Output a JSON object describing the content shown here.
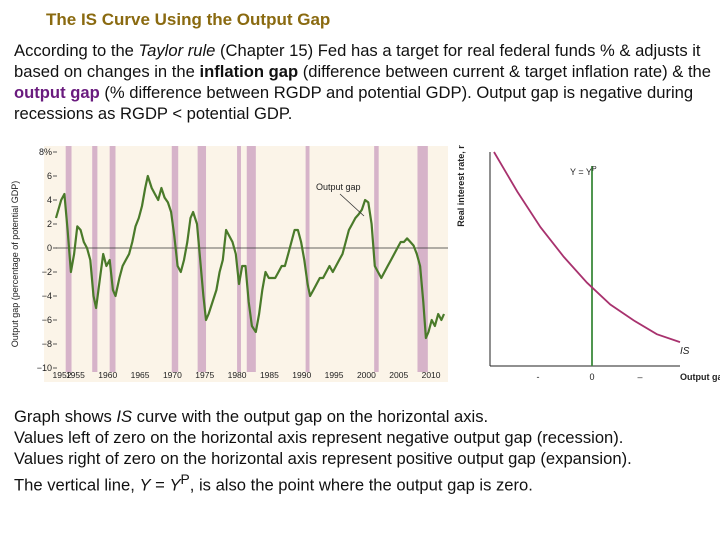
{
  "slide": {
    "title": "The IS Curve Using the Output Gap",
    "intro": {
      "p1": "According to the ",
      "taylor": "Taylor rule",
      "p2": " (Chapter 15) Fed has a target for real federal funds % & adjusts it based on changes in the ",
      "inflation_gap": "inflation gap",
      "p3": " (difference between current & target inflation rate) & the ",
      "output_gap": "output gap",
      "p4": " (% difference between RGDP and potential GDP). Output gap is negative during recessions as RGDP < potential GDP."
    },
    "caption": {
      "line1_a": "Graph shows ",
      "line1_is": "IS",
      "line1_b": " curve with the output gap on the horizontal axis.",
      "line2": "Values left of zero on the horizontal axis represent negative output gap (recession).",
      "line3": "Values right of zero on the horizontal axis represent positive output gap (expansion).",
      "line4_a": "The vertical line, ",
      "line4_y": "Y",
      "line4_eq": " = ",
      "line4_y2": "Y",
      "line4_p": "P",
      "line4_b": ", is also the point where the output gap is zero."
    }
  },
  "chart_data": [
    {
      "type": "line",
      "title": "",
      "ylabel": "Output gap (percentage of potential GDP)",
      "xlabel": "",
      "xlim": [
        1952,
        2012
      ],
      "ylim": [
        -10,
        8
      ],
      "y_ticks": [
        "8%",
        "6",
        "4",
        "2",
        "0",
        "−2",
        "−4",
        "−6",
        "−8",
        "−10"
      ],
      "x_ticks": [
        "1952",
        "1955",
        "1960",
        "1965",
        "1970",
        "1975",
        "1980",
        "1985",
        "1990",
        "1995",
        "2000",
        "2005",
        "2010"
      ],
      "annotation": "Output gap",
      "recession_shading": [
        [
          1953.5,
          1954.4
        ],
        [
          1957.6,
          1958.4
        ],
        [
          1960.3,
          1961.2
        ],
        [
          1969.9,
          1970.9
        ],
        [
          1973.9,
          1975.2
        ],
        [
          1980.0,
          1980.6
        ],
        [
          1981.5,
          1982.9
        ],
        [
          1990.6,
          1991.2
        ],
        [
          2001.2,
          2001.9
        ],
        [
          2007.9,
          2009.5
        ]
      ],
      "colors": {
        "line": "#4a7a2a",
        "recession": "#d6b3c9",
        "panel": "#fbf4e8"
      },
      "series": [
        {
          "x": [
            1952,
            1952.8,
            1953.3,
            1953.8,
            1954.3,
            1954.8,
            1955.3,
            1955.8,
            1956.3,
            1956.8,
            1957.3,
            1957.8,
            1958.2,
            1958.8,
            1959.3,
            1959.8,
            1960.3,
            1960.8,
            1961.2,
            1961.8,
            1962.3,
            1962.8,
            1963.3,
            1963.8,
            1964.3,
            1964.8,
            1965.3,
            1965.8,
            1966.2,
            1966.8,
            1967.3,
            1967.8,
            1968.3,
            1968.8,
            1969.3,
            1969.8,
            1970.3,
            1970.8,
            1971.3,
            1971.8,
            1972.3,
            1972.8,
            1973.2,
            1973.8,
            1974.3,
            1974.8,
            1975.2,
            1975.6,
            1976.2,
            1976.8,
            1977.3,
            1977.8,
            1978.3,
            1978.8,
            1979.3,
            1979.8,
            1980.3,
            1980.8,
            1981.3,
            1981.8,
            1982.3,
            1982.9,
            1983.4,
            1983.9,
            1984.4,
            1984.9,
            1985.4,
            1985.9,
            1986.4,
            1986.9,
            1987.4,
            1987.9,
            1988.4,
            1988.9,
            1989.4,
            1989.9,
            1990.4,
            1990.9,
            1991.3,
            1991.8,
            1992.3,
            1992.8,
            1993.3,
            1993.8,
            1994.3,
            1994.8,
            1995.3,
            1995.8,
            1996.3,
            1996.8,
            1997.3,
            1997.8,
            1998.3,
            1998.8,
            1999.3,
            1999.8,
            2000.3,
            2000.8,
            2001.3,
            2001.8,
            2002.3,
            2002.8,
            2003.3,
            2003.8,
            2004.3,
            2004.8,
            2005.3,
            2005.8,
            2006.3,
            2006.8,
            2007.3,
            2007.8,
            2008.3,
            2008.8,
            2009.2,
            2009.6,
            2010.1,
            2010.6,
            2011.1,
            2011.6,
            2012
          ],
          "y": [
            2.5,
            4.0,
            4.5,
            1.5,
            -2.0,
            -0.5,
            1.8,
            1.5,
            0.5,
            0.0,
            -1.0,
            -4.0,
            -5.0,
            -2.5,
            -0.5,
            -1.5,
            -1.0,
            -3.5,
            -4.0,
            -2.5,
            -1.5,
            -1.0,
            -0.5,
            0.5,
            1.8,
            2.5,
            3.5,
            5.0,
            6.0,
            5.0,
            4.5,
            4.0,
            5.0,
            4.2,
            3.8,
            3.0,
            1.0,
            -1.5,
            -2.0,
            -1.0,
            0.5,
            2.5,
            3.0,
            2.0,
            -1.0,
            -4.0,
            -6.0,
            -5.5,
            -4.5,
            -3.5,
            -2.0,
            -1.0,
            1.5,
            1.0,
            0.5,
            -0.5,
            -3.0,
            -1.5,
            -1.5,
            -4.5,
            -6.5,
            -7.0,
            -5.5,
            -3.5,
            -2.0,
            -2.5,
            -2.5,
            -2.5,
            -2.0,
            -1.5,
            -1.5,
            -0.5,
            0.5,
            1.5,
            1.5,
            0.5,
            -1.0,
            -3.0,
            -4.0,
            -3.5,
            -3.0,
            -2.5,
            -2.5,
            -2.0,
            -1.5,
            -2.0,
            -1.5,
            -1.0,
            -0.5,
            0.5,
            1.5,
            2.0,
            2.5,
            2.8,
            3.2,
            4.0,
            3.8,
            2.0,
            -1.5,
            -2.0,
            -2.5,
            -2.0,
            -1.5,
            -1.0,
            -0.5,
            0.0,
            0.5,
            0.5,
            0.8,
            0.5,
            0.2,
            -0.5,
            -1.5,
            -4.5,
            -7.5,
            -7.0,
            -6.0,
            -6.5,
            -5.5,
            -6.0,
            -5.5
          ]
        }
      ]
    },
    {
      "type": "line",
      "title": "",
      "ylabel": "Real interest rate, r",
      "xlabel": "Output gap, Y",
      "x_ticks": [
        "-",
        "0",
        "–"
      ],
      "annotations": {
        "vertical_line": "Y = Y",
        "vertical_line_sup": "P",
        "curve": "IS"
      },
      "colors": {
        "curve": "#a8326e",
        "vertical": "#3d8a3d"
      },
      "series": [
        {
          "name": "IS",
          "x": [
            -1.0,
            -0.75,
            -0.5,
            -0.25,
            0.0,
            0.25,
            0.5,
            0.75,
            1.0
          ],
          "y": [
            1.0,
            0.8,
            0.62,
            0.47,
            0.34,
            0.23,
            0.15,
            0.08,
            0.04
          ]
        }
      ]
    }
  ]
}
